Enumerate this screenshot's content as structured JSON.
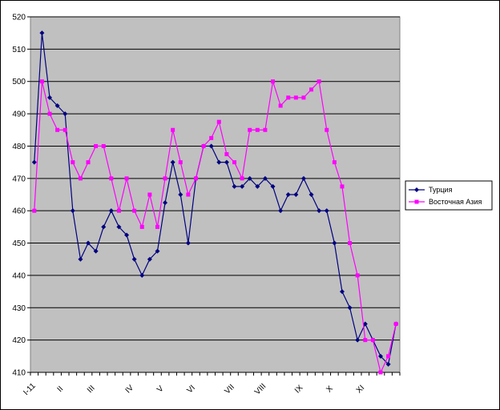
{
  "chart_data": {
    "type": "line",
    "title": "",
    "xlabel": "",
    "ylabel": "",
    "ylim": [
      410,
      520
    ],
    "yticks": [
      410,
      420,
      430,
      440,
      450,
      460,
      470,
      480,
      490,
      500,
      510,
      520
    ],
    "x_labels": [
      "I-11",
      "II",
      "III",
      "IV",
      "V",
      "VI",
      "VII",
      "VIII",
      "IX",
      "X",
      "XI"
    ],
    "grid": "horizontal",
    "plot_background": "#c0c0c0",
    "legend_position": "right",
    "series": [
      {
        "name": "Турция",
        "color": "#000080",
        "marker": "diamond",
        "values": [
          475,
          515,
          495,
          492.5,
          490,
          460,
          445,
          450,
          447.5,
          455,
          460,
          455,
          452.5,
          445,
          440,
          445,
          447.5,
          462.5,
          475,
          465,
          450,
          470,
          480,
          480,
          475,
          475,
          467.5,
          467.5,
          470,
          467.5,
          470,
          467.5,
          460,
          465,
          465,
          470,
          465,
          460,
          460,
          450,
          435,
          430,
          420,
          425,
          420,
          415,
          412.5,
          425
        ]
      },
      {
        "name": "Восточная Азия",
        "color": "#ff00ff",
        "marker": "square",
        "values": [
          460,
          500,
          490,
          485,
          485,
          475,
          470,
          475,
          480,
          480,
          470,
          460,
          470,
          460,
          455,
          465,
          455,
          470,
          485,
          475,
          465,
          470,
          480,
          482.5,
          487.5,
          477.5,
          475,
          470,
          485,
          485,
          485,
          500,
          492.5,
          495,
          495,
          495,
          497.5,
          500,
          485,
          475,
          467.5,
          450,
          440,
          420,
          420,
          410,
          415,
          425
        ]
      }
    ]
  }
}
